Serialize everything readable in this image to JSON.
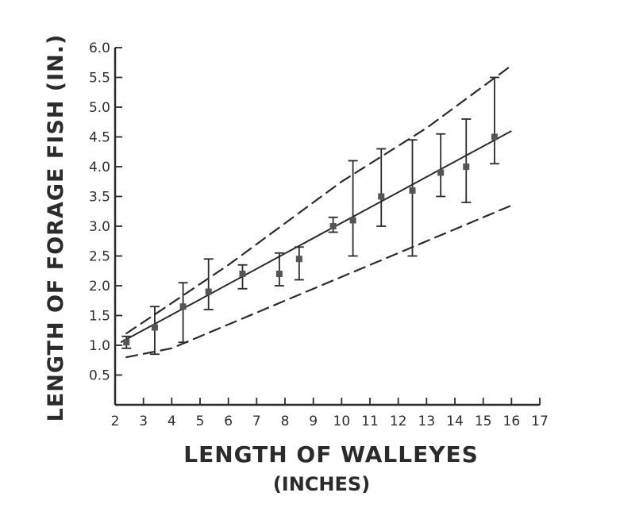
{
  "chart_data": {
    "type": "scatter",
    "title": "",
    "xlabel": "LENGTH OF WALLEYES",
    "xlabel_sub": "(INCHES)",
    "ylabel": "LENGTH OF FORAGE FISH (IN.)",
    "xlim": [
      2,
      17
    ],
    "ylim": [
      0,
      6
    ],
    "xticks": [
      "2",
      "3",
      "4",
      "5",
      "6",
      "7",
      "8",
      "9",
      "10",
      "11",
      "12",
      "13",
      "14",
      "15",
      "16",
      "17"
    ],
    "yticks": [
      "0.5",
      "1.0",
      "1.5",
      "2.0",
      "2.5",
      "3.0",
      "3.5",
      "4.0",
      "4.5",
      "5.0",
      "5.5",
      "6.0"
    ],
    "grid": false,
    "colors": {
      "ink": "#2b2b2b"
    },
    "points": [
      {
        "x": 2.4,
        "y": 1.05,
        "low": 0.95,
        "high": 1.15
      },
      {
        "x": 3.4,
        "y": 1.3,
        "low": 0.85,
        "high": 1.65
      },
      {
        "x": 4.4,
        "y": 1.65,
        "low": 1.05,
        "high": 2.05
      },
      {
        "x": 5.3,
        "y": 1.9,
        "low": 1.6,
        "high": 2.45
      },
      {
        "x": 6.5,
        "y": 2.2,
        "low": 1.95,
        "high": 2.35
      },
      {
        "x": 7.8,
        "y": 2.2,
        "low": 2.0,
        "high": 2.55
      },
      {
        "x": 8.5,
        "y": 2.45,
        "low": 2.1,
        "high": 2.65
      },
      {
        "x": 9.7,
        "y": 3.0,
        "low": 2.9,
        "high": 3.15
      },
      {
        "x": 10.4,
        "y": 3.1,
        "low": 2.5,
        "high": 4.1
      },
      {
        "x": 11.4,
        "y": 3.5,
        "low": 3.0,
        "high": 4.3
      },
      {
        "x": 12.5,
        "y": 3.6,
        "low": 2.5,
        "high": 4.45
      },
      {
        "x": 13.5,
        "y": 3.9,
        "low": 3.5,
        "high": 4.55
      },
      {
        "x": 14.4,
        "y": 4.0,
        "low": 3.4,
        "high": 4.8
      },
      {
        "x": 15.4,
        "y": 4.5,
        "low": 4.05,
        "high": 5.5
      }
    ],
    "regression_line": [
      [
        2.2,
        1.05
      ],
      [
        16.0,
        4.6
      ]
    ],
    "upper_envelope": [
      [
        2.4,
        1.2
      ],
      [
        3.5,
        1.55
      ],
      [
        6.0,
        2.35
      ],
      [
        10.0,
        3.75
      ],
      [
        13.0,
        4.65
      ],
      [
        16.0,
        5.7
      ]
    ],
    "lower_envelope": [
      [
        2.4,
        0.8
      ],
      [
        4.0,
        0.95
      ],
      [
        8.0,
        1.75
      ],
      [
        12.0,
        2.55
      ],
      [
        16.0,
        3.35
      ]
    ]
  }
}
